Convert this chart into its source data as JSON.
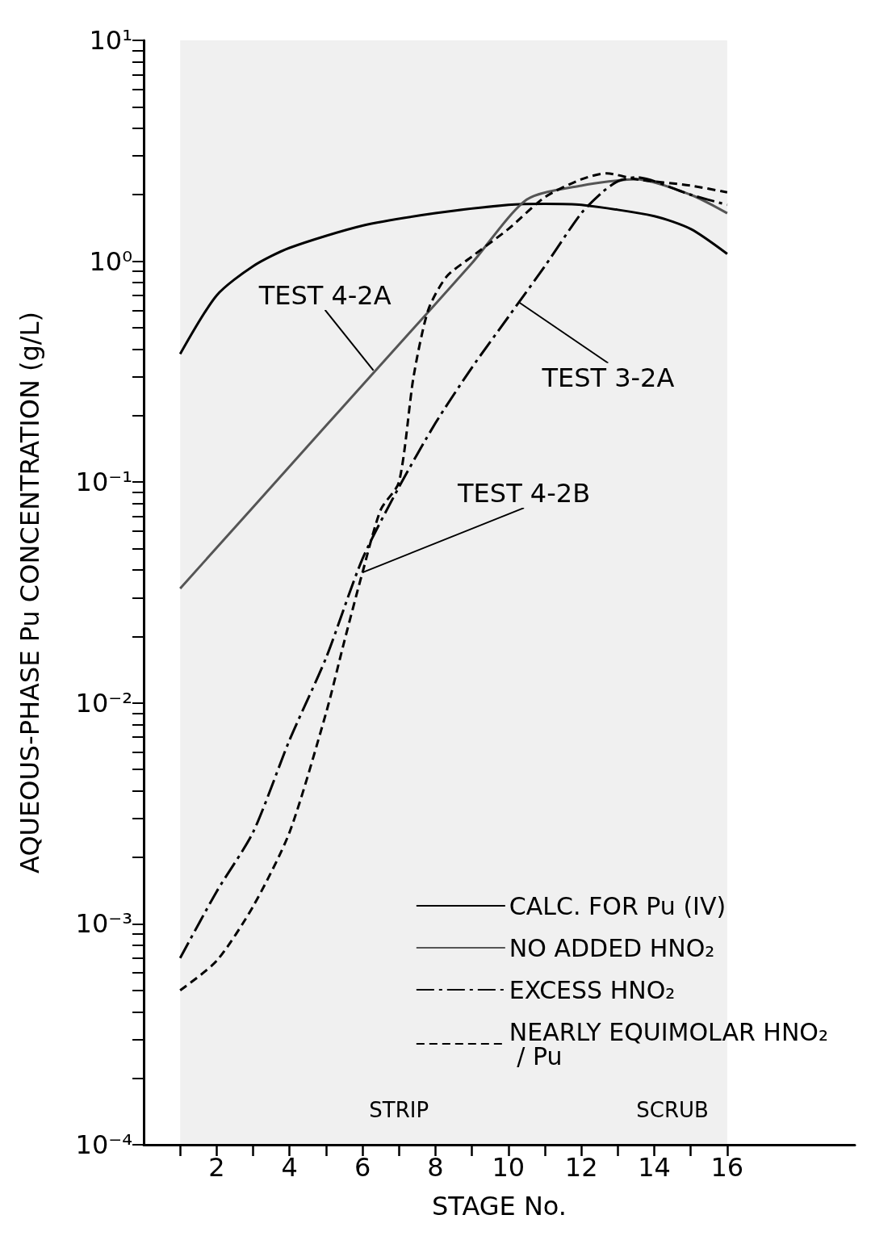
{
  "chart_data": {
    "type": "line",
    "xlabel": "STAGE No.",
    "ylabel": "AQUEOUS-PHASE Pu CONCENTRATION (g/L)",
    "log": "y",
    "grid": false,
    "legend": "bottom right",
    "marker": "none",
    "xlim": [
      0,
      19.5
    ],
    "xticks": [
      {
        "value": 1,
        "label": null
      },
      2,
      {
        "value": 3,
        "label": null
      },
      4,
      {
        "value": 5,
        "label": null
      },
      6,
      {
        "value": 7,
        "label": null
      },
      8,
      {
        "value": 9,
        "label": null
      },
      10,
      {
        "value": 11,
        "label": null
      },
      12,
      {
        "value": 13,
        "label": null
      },
      14,
      {
        "value": 15,
        "label": null
      },
      16
    ],
    "ylim": [
      0.0001,
      10
    ],
    "yticks": [
      {
        "value": 0.0001,
        "label": "10⁻⁴"
      },
      {
        "value": 0.0002,
        "label": null
      },
      {
        "value": 0.0003,
        "label": null
      },
      {
        "value": 0.0004,
        "label": null
      },
      {
        "value": 0.0005,
        "label": null
      },
      {
        "value": 0.0006,
        "label": null
      },
      {
        "value": 0.0007,
        "label": null
      },
      {
        "value": 0.0008,
        "label": null
      },
      {
        "value": 0.0009,
        "label": null
      },
      {
        "value": 0.001,
        "label": "10⁻³"
      },
      {
        "value": 0.002,
        "label": null
      },
      {
        "value": 0.003,
        "label": null
      },
      {
        "value": 0.004,
        "label": null
      },
      {
        "value": 0.005,
        "label": null
      },
      {
        "value": 0.006,
        "label": null
      },
      {
        "value": 0.007,
        "label": null
      },
      {
        "value": 0.008,
        "label": null
      },
      {
        "value": 0.009,
        "label": null
      },
      {
        "value": 0.01,
        "label": "10⁻²"
      },
      {
        "value": 0.02,
        "label": null
      },
      {
        "value": 0.03,
        "label": null
      },
      {
        "value": 0.04,
        "label": null
      },
      {
        "value": 0.05,
        "label": null
      },
      {
        "value": 0.06,
        "label": null
      },
      {
        "value": 0.07,
        "label": null
      },
      {
        "value": 0.08,
        "label": null
      },
      {
        "value": 0.09,
        "label": null
      },
      {
        "value": 0.1,
        "label": "10⁻¹"
      },
      {
        "value": 0.2,
        "label": null
      },
      {
        "value": 0.3,
        "label": null
      },
      {
        "value": 0.4,
        "label": null
      },
      {
        "value": 0.5,
        "label": null
      },
      {
        "value": 0.6,
        "label": null
      },
      {
        "value": 0.7,
        "label": null
      },
      {
        "value": 0.8,
        "label": null
      },
      {
        "value": 0.9,
        "label": null
      },
      {
        "value": 1,
        "label": "10⁰"
      },
      {
        "value": 2,
        "label": null
      },
      {
        "value": 3,
        "label": null
      },
      {
        "value": 4,
        "label": null
      },
      {
        "value": 5,
        "label": null
      },
      {
        "value": 6,
        "label": null
      },
      {
        "value": 7,
        "label": null
      },
      {
        "value": 8,
        "label": null
      },
      {
        "value": 9,
        "label": null
      },
      {
        "value": 10,
        "label": "10¹"
      }
    ],
    "series": [
      {
        "name": "CALC. FOR Pu (IV)",
        "color": "#000000",
        "line_style": "solid",
        "x": [
          1,
          2,
          3,
          4,
          6,
          8,
          10,
          11,
          12,
          14,
          15,
          16
        ],
        "values": [
          0.38,
          0.7,
          0.95,
          1.15,
          1.45,
          1.65,
          1.8,
          1.82,
          1.8,
          1.6,
          1.4,
          1.08
        ]
      },
      {
        "name": "NO ADDED HNO₂",
        "color": "#555555",
        "line_style": "solid",
        "x": [
          1,
          3,
          5,
          7,
          9,
          10.5,
          12,
          13.5,
          15,
          16
        ],
        "values": [
          0.033,
          0.077,
          0.18,
          0.42,
          0.98,
          1.9,
          2.2,
          2.35,
          2.0,
          1.65
        ]
      },
      {
        "name": "EXCESS HNO₂",
        "color": "#000000",
        "line_style": "dashdot",
        "x": [
          1,
          2,
          3,
          4,
          5,
          6,
          7,
          8,
          9,
          10,
          11,
          12,
          12.6,
          13,
          13.5,
          15,
          16
        ],
        "values": [
          0.0007,
          0.0014,
          0.0026,
          0.0068,
          0.016,
          0.045,
          0.095,
          0.185,
          0.33,
          0.56,
          0.95,
          1.65,
          2.07,
          2.3,
          2.4,
          2.0,
          1.8
        ]
      },
      {
        "name": "NEARLY EQUIMOLAR HNO₂ / Pu",
        "color": "#000000",
        "line_style": "dashed",
        "x": [
          1,
          2,
          3,
          4,
          5,
          5.5,
          6,
          6.5,
          7,
          7.4,
          7.8,
          8.3,
          9,
          10,
          11,
          12,
          12.7,
          13.5,
          15,
          16
        ],
        "values": [
          0.0005,
          0.00068,
          0.0012,
          0.0026,
          0.009,
          0.019,
          0.039,
          0.075,
          0.1,
          0.3,
          0.6,
          0.85,
          1.05,
          1.4,
          1.95,
          2.35,
          2.5,
          2.35,
          2.2,
          2.05
        ]
      }
    ],
    "bands": [
      {
        "axis": "x",
        "from": 1,
        "to": 13,
        "label": "STRIP"
      },
      {
        "axis": "x",
        "from": 13,
        "to": 16,
        "label": "SCRUB"
      }
    ],
    "annotations": [
      {
        "text": "TEST 4-2A",
        "x": 6.3,
        "y": 0.32
      },
      {
        "text": "TEST 3-2A",
        "x": 10.3,
        "y": 0.65
      },
      {
        "text": "TEST 4-2B",
        "x": 6,
        "y": 0.039
      }
    ]
  }
}
